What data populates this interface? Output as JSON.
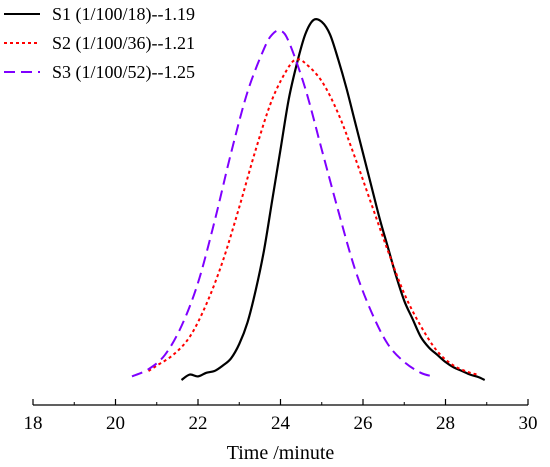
{
  "chart_data": {
    "type": "line",
    "title": "",
    "xlabel": "Time /minute",
    "ylabel": "",
    "xlim": [
      18,
      30
    ],
    "ylim": [
      0,
      1.0
    ],
    "x_ticks": [
      "18",
      "20",
      "22",
      "24",
      "26",
      "28",
      "30"
    ],
    "grid": false,
    "legend_position": "top-left",
    "series": [
      {
        "name": "S1 (1/100/18)--1.19",
        "color": "#000000",
        "dash": "solid",
        "x": [
          21.6,
          21.8,
          22.0,
          22.2,
          22.4,
          22.6,
          22.8,
          23.0,
          23.2,
          23.4,
          23.6,
          23.8,
          24.0,
          24.2,
          24.4,
          24.6,
          24.8,
          25.0,
          25.2,
          25.4,
          25.6,
          25.8,
          26.0,
          26.2,
          26.4,
          26.6,
          26.8,
          27.0,
          27.2,
          27.4,
          27.6,
          27.8,
          28.0,
          28.2,
          28.4,
          28.6,
          28.8,
          28.95
        ],
        "y": [
          0.0,
          0.015,
          0.01,
          0.02,
          0.025,
          0.04,
          0.06,
          0.1,
          0.16,
          0.25,
          0.36,
          0.5,
          0.64,
          0.78,
          0.88,
          0.96,
          1.0,
          0.995,
          0.96,
          0.89,
          0.81,
          0.72,
          0.63,
          0.54,
          0.45,
          0.37,
          0.29,
          0.22,
          0.17,
          0.12,
          0.09,
          0.07,
          0.05,
          0.035,
          0.025,
          0.015,
          0.008,
          0.0
        ]
      },
      {
        "name": "S2 (1/100/36)--1.21",
        "color": "#ff0000",
        "dash": "dotted",
        "x": [
          20.8,
          21.0,
          21.4,
          21.8,
          22.2,
          22.6,
          23.0,
          23.4,
          23.8,
          24.2,
          24.4,
          24.6,
          25.0,
          25.4,
          25.8,
          26.2,
          26.6,
          27.0,
          27.4,
          27.8,
          28.2,
          28.6,
          28.8
        ],
        "y": [
          0.025,
          0.04,
          0.07,
          0.12,
          0.21,
          0.33,
          0.48,
          0.64,
          0.78,
          0.87,
          0.89,
          0.88,
          0.83,
          0.74,
          0.62,
          0.49,
          0.36,
          0.24,
          0.15,
          0.08,
          0.04,
          0.02,
          0.015
        ]
      },
      {
        "name": "S3 (1/100/52)--1.25",
        "color": "#7f00ff",
        "dash": "dashed",
        "x": [
          20.4,
          20.8,
          21.2,
          21.6,
          22.0,
          22.4,
          22.8,
          23.2,
          23.6,
          23.8,
          24.0,
          24.2,
          24.6,
          25.0,
          25.4,
          25.8,
          26.2,
          26.6,
          27.0,
          27.4,
          27.7
        ],
        "y": [
          0.01,
          0.03,
          0.07,
          0.15,
          0.27,
          0.44,
          0.63,
          0.8,
          0.92,
          0.96,
          0.97,
          0.94,
          0.81,
          0.64,
          0.47,
          0.31,
          0.19,
          0.1,
          0.05,
          0.02,
          0.01
        ]
      }
    ]
  }
}
